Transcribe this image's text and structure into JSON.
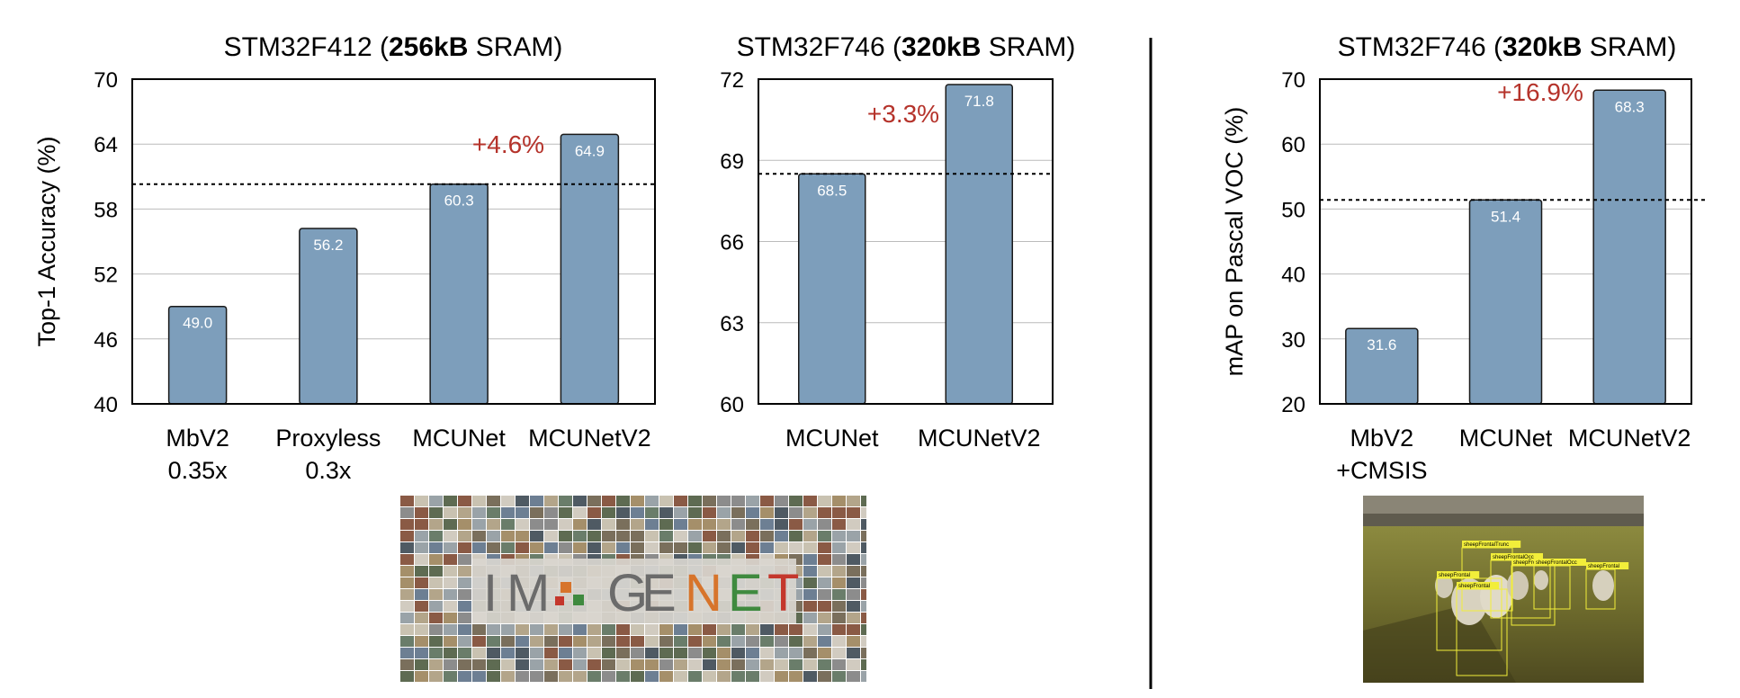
{
  "colors": {
    "bar_fill": "#7d9ebb",
    "bar_stroke": "#1a1a1a",
    "improvement_text": "#b5332b",
    "grid": "#bbbbbb",
    "axis": "#000000"
  },
  "chart_data": [
    {
      "type": "bar",
      "title_plain_1": "STM32F412 (",
      "title_bold": "256kB",
      "title_plain_2": " SRAM)",
      "ylabel": "Top-1 Accuracy (%)",
      "ylim": [
        40,
        70
      ],
      "yticks": [
        40,
        46,
        52,
        58,
        64,
        70
      ],
      "categories": [
        [
          "MbV2",
          "0.35x"
        ],
        [
          "Proxyless",
          "0.3x"
        ],
        [
          "MCUNet"
        ],
        [
          "MCUNetV2"
        ]
      ],
      "values": [
        49.0,
        56.2,
        60.3,
        64.9
      ],
      "value_labels": [
        "49.0",
        "56.2",
        "60.3",
        "64.9"
      ],
      "baseline": 60.3,
      "annotation": "+4.6%",
      "grid": true
    },
    {
      "type": "bar",
      "title_plain_1": "STM32F746 (",
      "title_bold": "320kB",
      "title_plain_2": " SRAM)",
      "ylabel": "",
      "ylim": [
        60,
        72
      ],
      "yticks": [
        60,
        63,
        66,
        69,
        72
      ],
      "categories": [
        [
          "MCUNet"
        ],
        [
          "MCUNetV2"
        ]
      ],
      "values": [
        68.5,
        71.8
      ],
      "value_labels": [
        "68.5",
        "71.8"
      ],
      "baseline": 68.5,
      "annotation": "+3.3%",
      "grid": true
    },
    {
      "type": "bar",
      "title_plain_1": "STM32F746 (",
      "title_bold": "320kB",
      "title_plain_2": " SRAM)",
      "ylabel": "mAP on Pascal VOC (%)",
      "ylim": [
        20,
        70
      ],
      "yticks": [
        20,
        30,
        40,
        50,
        60,
        70
      ],
      "categories": [
        [
          "MbV2",
          "+CMSIS"
        ],
        [
          "MCUNet"
        ],
        [
          "MCUNetV2"
        ]
      ],
      "values": [
        31.6,
        51.4,
        68.3
      ],
      "value_labels": [
        "31.6",
        "51.4",
        "68.3"
      ],
      "baseline": 51.4,
      "annotation": "+16.9%",
      "grid": true
    }
  ],
  "images": {
    "imagenet": {
      "letters": [
        "I",
        "M",
        "G",
        "E",
        "N",
        "E",
        "T"
      ],
      "letter_colors": [
        "#6b6b6b",
        "#6b6b6b",
        "#6b6b6b",
        "#6b6b6b",
        "#d7742b",
        "#3f8a3f",
        "#c4372c"
      ]
    },
    "voc": {
      "box_labels": [
        "sheepFrontalTrunc",
        "sheepFrontalOcc",
        "sheepFrontalTrunc",
        "sheepFrontal",
        "sheepFrontalOcc",
        "sheepFrontal",
        "sheepFrontal"
      ]
    }
  }
}
